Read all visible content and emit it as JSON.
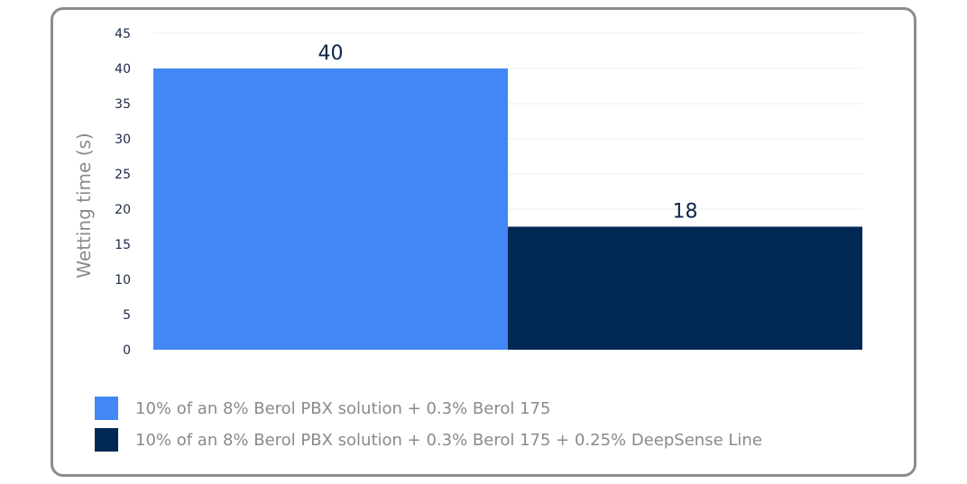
{
  "chart_data": {
    "type": "bar",
    "ylabel": "Wetting time (s)",
    "ylim": [
      0,
      45
    ],
    "yticks": [
      0,
      5,
      10,
      15,
      20,
      25,
      30,
      35,
      40,
      45
    ],
    "grid": true,
    "legend_position": "bottom-left",
    "series": [
      {
        "name": "10% of an 8% Berol PBX solution + 0.3% Berol 175",
        "value": 40,
        "label": "40",
        "color": "#4287f5"
      },
      {
        "name": "10% of an 8% Berol PBX solution + 0.3% Berol 175 + 0.25% DeepSense Line",
        "value": 17.5,
        "label": "18",
        "color": "#002855"
      }
    ]
  }
}
